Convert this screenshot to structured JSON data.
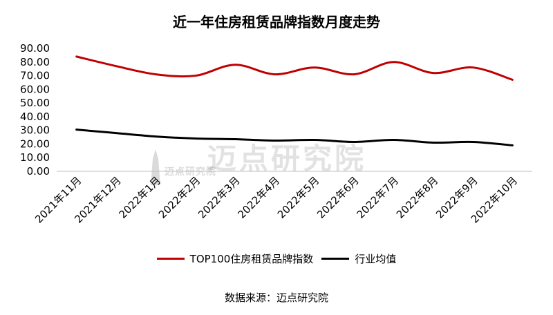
{
  "chart_data": {
    "type": "line",
    "title": "近一年住房租赁品牌指数月度走势",
    "categories": [
      "2021年11月",
      "2021年12月",
      "2022年1月",
      "2022年2月",
      "2022年3月",
      "2022年4月",
      "2022年5月",
      "2022年6月",
      "2022年7月",
      "2022年8月",
      "2022年9月",
      "2022年10月"
    ],
    "y_tick_labels": [
      "0.00",
      "10.00",
      "20.00",
      "30.00",
      "40.00",
      "50.00",
      "60.00",
      "70.00",
      "80.00",
      "90.00"
    ],
    "ylim": [
      0,
      90
    ],
    "grid": false,
    "legend_position": "bottom",
    "series": [
      {
        "name": "TOP100住房租赁品牌指数",
        "color": "#c00000",
        "values": [
          84.0,
          77.0,
          71.0,
          70.0,
          78.0,
          71.0,
          76.0,
          71.0,
          80.0,
          72.0,
          76.0,
          67.0
        ]
      },
      {
        "name": "行业均值",
        "color": "#000000",
        "values": [
          30.5,
          28.0,
          25.5,
          24.0,
          23.5,
          22.5,
          23.0,
          21.5,
          23.0,
          21.0,
          21.5,
          19.0
        ]
      }
    ]
  },
  "source": "数据来源：迈点研究院",
  "watermark": {
    "text": "迈点研究院",
    "small_text": "迈点研究院"
  }
}
